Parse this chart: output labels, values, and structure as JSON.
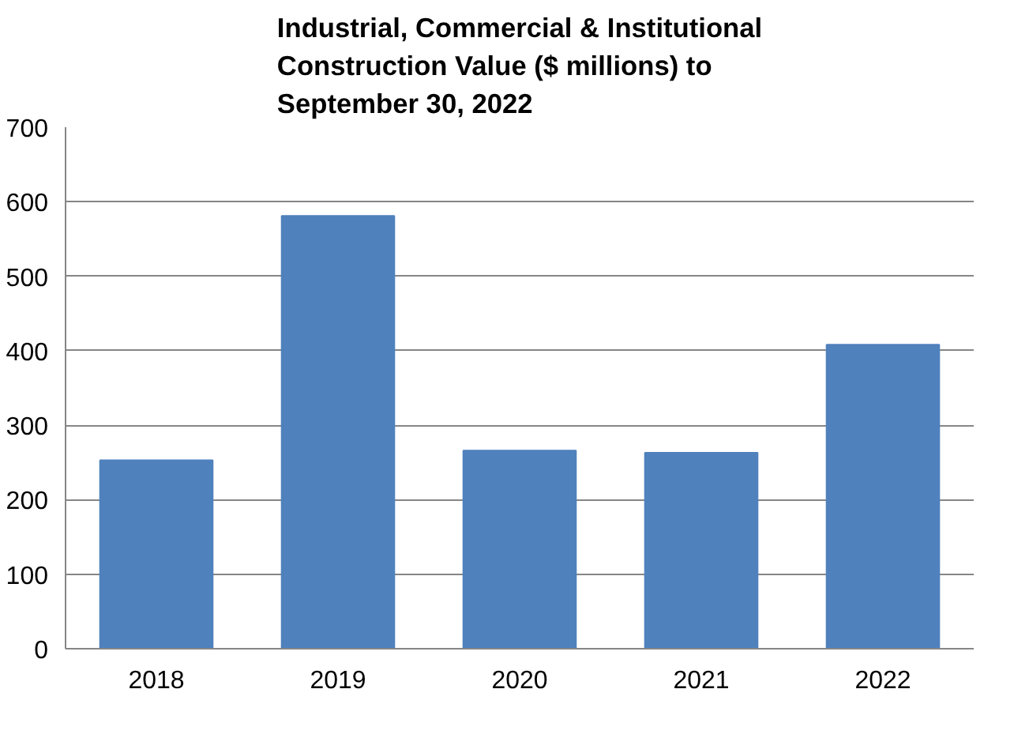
{
  "chart_data": {
    "type": "bar",
    "title": "Industrial, Commercial & Institutional Construction Value ($ millions) to September 30, 2022",
    "categories": [
      "2018",
      "2019",
      "2020",
      "2021",
      "2022"
    ],
    "values": [
      253,
      581,
      266,
      263,
      408
    ],
    "color": "#4f81bd",
    "ylim": [
      0,
      700
    ],
    "yticks": [
      0,
      100,
      200,
      300,
      400,
      500,
      600,
      700
    ],
    "grid": "y"
  }
}
